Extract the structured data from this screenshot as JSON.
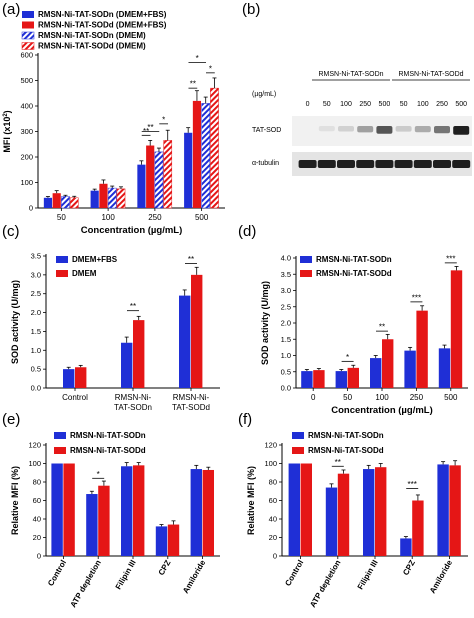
{
  "panels": {
    "a": "(a)",
    "b": "(b)",
    "c": "(c)",
    "d": "(d)",
    "e": "(e)",
    "f": "(f)"
  },
  "colors": {
    "blue": "#1f2fd6",
    "red": "#e51616",
    "gray": "#8c8c8c"
  },
  "western_blot": {
    "unit_label": "(µg/mL)",
    "group_labels": [
      "RMSN-Ni-TAT-SODn",
      "RMSN-Ni-TAT-SODd"
    ],
    "lane_labels": [
      "0",
      "50",
      "100",
      "250",
      "500",
      "50",
      "100",
      "250",
      "500"
    ],
    "row_labels": [
      "TAT-SOD",
      "α-tubulin"
    ],
    "tat_sod_band_intensity": [
      0,
      0.05,
      0.12,
      0.35,
      0.7,
      0.15,
      0.3,
      0.55,
      0.95
    ]
  },
  "chart_data": [
    {
      "panel": "a",
      "type": "bar",
      "categories": [
        "50",
        "100",
        "250",
        "500"
      ],
      "xlabel": "Concentration (µg/mL)",
      "ylabel": "MFI (x10",
      "ylabel_sup": "2",
      "ylabel_end": ")",
      "ylim": [
        0,
        600
      ],
      "yticks": [
        "0",
        "100",
        "200",
        "300",
        "400",
        "500",
        "600"
      ],
      "series": [
        {
          "name": "RMSN-Ni-TAT-SODn (DMEM+FBS)",
          "color": "#1f2fd6",
          "hatched": false,
          "values": [
            40,
            68,
            170,
            295
          ],
          "errors": [
            5,
            6,
            15,
            20
          ]
        },
        {
          "name": "RMSN-Ni-TAT-SODd (DMEM+FBS)",
          "color": "#e51616",
          "hatched": false,
          "values": [
            58,
            95,
            245,
            420
          ],
          "errors": [
            10,
            15,
            20,
            40
          ]
        },
        {
          "name": "RMSN-Ni-TAT-SODn (DMEM)",
          "color": "#1f2fd6",
          "hatched": true,
          "values": [
            45,
            78,
            220,
            410
          ],
          "errors": [
            5,
            8,
            15,
            25
          ]
        },
        {
          "name": "RMSN-Ni-TAT-SODd (DMEM)",
          "color": "#e51616",
          "hatched": true,
          "values": [
            40,
            75,
            265,
            470
          ],
          "errors": [
            6,
            8,
            40,
            40
          ]
        }
      ],
      "significance": [
        {
          "group": 2,
          "from": 0,
          "to": 1,
          "y": 285,
          "label": "**"
        },
        {
          "group": 2,
          "from": 0,
          "to": 2,
          "y": 300,
          "label": "**"
        },
        {
          "group": 2,
          "from": 2,
          "to": 3,
          "y": 330,
          "label": "*"
        },
        {
          "group": 3,
          "from": 0,
          "to": 1,
          "y": 470,
          "label": "**"
        },
        {
          "group": 3,
          "from": 2,
          "to": 3,
          "y": 530,
          "label": "*"
        },
        {
          "group": 3,
          "from": 0,
          "to": 2,
          "y": 570,
          "label": "*"
        }
      ]
    },
    {
      "panel": "c",
      "type": "bar",
      "categories": [
        "Control",
        "RMSN-Ni-\nTAT-SODn",
        "RMSN-Ni-\nTAT-SODd"
      ],
      "xlabel": "",
      "ylabel": "SOD activity (U/mg)",
      "ylim": [
        0,
        3.5
      ],
      "yticks": [
        "0.0",
        "0.5",
        "1.0",
        "1.5",
        "2.0",
        "2.5",
        "3.0",
        "3.5"
      ],
      "series": [
        {
          "name": "DMEM+FBS",
          "color": "#1f2fd6",
          "values": [
            0.5,
            1.2,
            2.45
          ],
          "errors": [
            0.05,
            0.15,
            0.15
          ]
        },
        {
          "name": "DMEM",
          "color": "#e51616",
          "values": [
            0.55,
            1.8,
            3.0
          ],
          "errors": [
            0.05,
            0.1,
            0.2
          ]
        }
      ],
      "significance": [
        {
          "group": 1,
          "from": 0,
          "to": 1,
          "y": 2.05,
          "label": "**"
        },
        {
          "group": 2,
          "from": 0,
          "to": 1,
          "y": 3.3,
          "label": "**"
        }
      ]
    },
    {
      "panel": "d",
      "type": "bar",
      "categories": [
        "0",
        "50",
        "100",
        "250",
        "500"
      ],
      "xlabel": "Concentration (µg/mL)",
      "ylabel": "SOD activity (U/mg)",
      "ylim": [
        0,
        4.0
      ],
      "yticks": [
        "0.0",
        "0.5",
        "1.0",
        "1.5",
        "2.0",
        "2.5",
        "3.0",
        "3.5",
        "4.0"
      ],
      "series": [
        {
          "name": "RMSN-Ni-TAT-SODn",
          "color": "#1f2fd6",
          "values": [
            0.52,
            0.52,
            0.92,
            1.15,
            1.22
          ],
          "errors": [
            0.05,
            0.05,
            0.08,
            0.1,
            0.1
          ]
        },
        {
          "name": "RMSN-Ni-TAT-SODd",
          "color": "#e51616",
          "values": [
            0.55,
            0.62,
            1.5,
            2.38,
            3.62
          ],
          "errors": [
            0.05,
            0.08,
            0.15,
            0.15,
            0.12
          ]
        }
      ],
      "significance": [
        {
          "group": 1,
          "from": 0,
          "to": 1,
          "y": 0.82,
          "label": "*"
        },
        {
          "group": 2,
          "from": 0,
          "to": 1,
          "y": 1.75,
          "label": "**"
        },
        {
          "group": 3,
          "from": 0,
          "to": 1,
          "y": 2.65,
          "label": "***"
        },
        {
          "group": 4,
          "from": 0,
          "to": 1,
          "y": 3.85,
          "label": "***"
        }
      ]
    },
    {
      "panel": "e",
      "type": "bar",
      "categories": [
        "Control",
        "ATP depletion",
        "Filipin III",
        "CPZ",
        "Amiloride"
      ],
      "xlabel": "",
      "ylabel": "Relative MFI (%)",
      "ylim": [
        0,
        120
      ],
      "yticks": [
        "0",
        "20",
        "40",
        "60",
        "80",
        "100",
        "120"
      ],
      "series": [
        {
          "name": "RMSN-Ni-TAT-SODn",
          "color": "#1f2fd6",
          "values": [
            100,
            67,
            97,
            32,
            94
          ],
          "errors": [
            0,
            3,
            4,
            2,
            4
          ]
        },
        {
          "name": "RMSN-Ni-TAT-SODd",
          "color": "#e51616",
          "values": [
            100,
            76,
            98,
            34,
            93
          ],
          "errors": [
            0,
            5,
            3,
            4,
            3
          ]
        }
      ],
      "significance": [
        {
          "group": 1,
          "from": 0,
          "to": 1,
          "y": 84,
          "label": "*"
        }
      ]
    },
    {
      "panel": "f",
      "type": "bar",
      "categories": [
        "Control",
        "ATP depletion",
        "Filipin III",
        "CPZ",
        "Amiloride"
      ],
      "xlabel": "",
      "ylabel": "Relative MFI (%)",
      "ylim": [
        0,
        120
      ],
      "yticks": [
        "0",
        "20",
        "40",
        "60",
        "80",
        "100",
        "120"
      ],
      "series": [
        {
          "name": "RMSN-Ni-TAT-SODn",
          "color": "#1f2fd6",
          "values": [
            100,
            74,
            94,
            19,
            99
          ],
          "errors": [
            0,
            4,
            4,
            2,
            3
          ]
        },
        {
          "name": "RMSN-Ni-TAT-SODd",
          "color": "#e51616",
          "values": [
            100,
            89,
            96,
            60,
            98
          ],
          "errors": [
            0,
            4,
            4,
            6,
            5
          ]
        }
      ],
      "significance": [
        {
          "group": 1,
          "from": 0,
          "to": 1,
          "y": 97,
          "label": "**"
        },
        {
          "group": 3,
          "from": 0,
          "to": 1,
          "y": 73,
          "label": "***"
        }
      ]
    }
  ]
}
